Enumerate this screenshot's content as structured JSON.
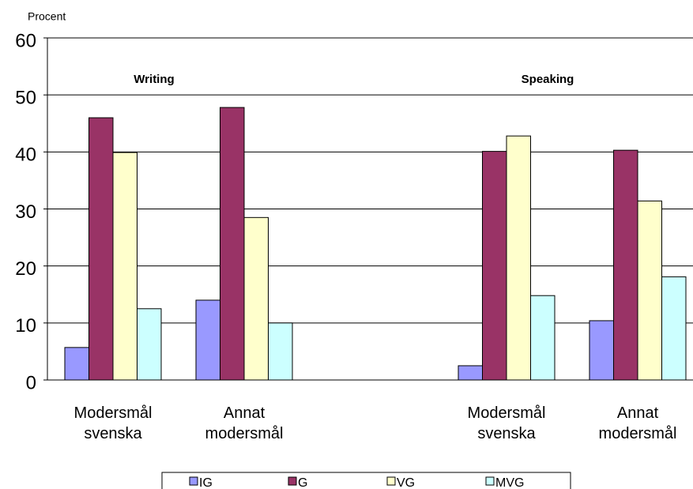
{
  "chart_data": {
    "type": "bar",
    "y_label": "Procent",
    "categories": [
      "Modersmål svenska",
      "Annat modersmål",
      null,
      "Modersmål svenska",
      "Annat modersmål"
    ],
    "series": [
      {
        "name": "IG",
        "color": "#9999ff",
        "values": [
          5.7,
          14,
          null,
          2.5,
          10.4
        ]
      },
      {
        "name": "G",
        "color": "#993366",
        "values": [
          46,
          47.8,
          null,
          40.1,
          40.3
        ]
      },
      {
        "name": "VG",
        "color": "#ffffcc",
        "values": [
          39.9,
          28.5,
          null,
          42.8,
          31.4
        ]
      },
      {
        "name": "MVG",
        "color": "#ccffff",
        "values": [
          12.5,
          10,
          null,
          14.8,
          18.1
        ]
      }
    ],
    "annotations": [
      {
        "text": "Writing",
        "category": 0.5
      },
      {
        "text": "Speaking",
        "category": 3.5
      }
    ],
    "ylim": [
      0,
      60
    ],
    "yticks": [
      0,
      10,
      20,
      30,
      40,
      50,
      60
    ],
    "grid": true,
    "legend": "bottom"
  }
}
